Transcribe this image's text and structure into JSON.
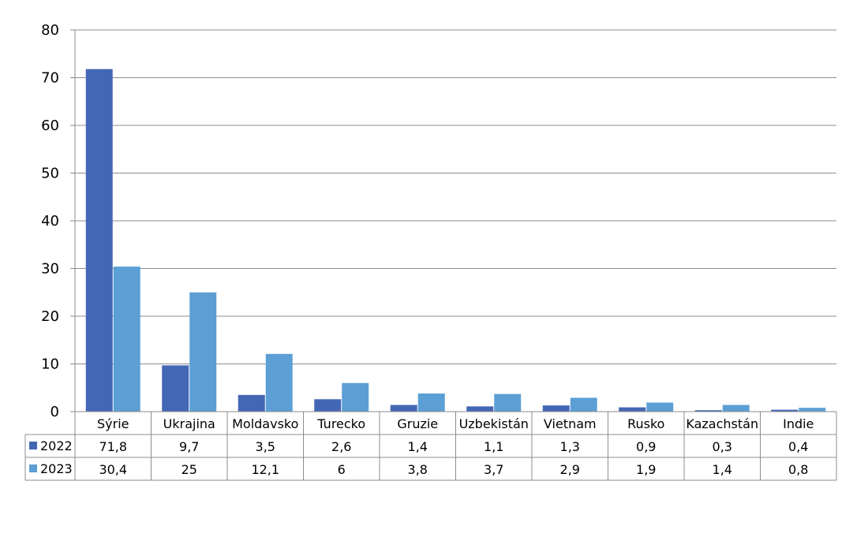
{
  "chart_data": {
    "type": "bar",
    "categories": [
      "Sýrie",
      "Ukrajina",
      "Moldavsko",
      "Turecko",
      "Gruzie",
      "Uzbekistán",
      "Vietnam",
      "Rusko",
      "Kazachstán",
      "Indie"
    ],
    "series": [
      {
        "name": "2022",
        "color": "#4467B5",
        "values": [
          71.8,
          9.7,
          3.5,
          2.6,
          1.4,
          1.1,
          1.3,
          0.9,
          0.3,
          0.4
        ],
        "labels": [
          "71,8",
          "9,7",
          "3,5",
          "2,6",
          "1,4",
          "1,1",
          "1,3",
          "0,9",
          "0,3",
          "0,4"
        ]
      },
      {
        "name": "2023",
        "color": "#5B9FD5",
        "values": [
          30.4,
          25,
          12.1,
          6,
          3.8,
          3.7,
          2.9,
          1.9,
          1.4,
          0.8
        ],
        "labels": [
          "30,4",
          "25",
          "12,1",
          "6",
          "3,8",
          "3,7",
          "2,9",
          "1,9",
          "1,4",
          "0,8"
        ]
      }
    ],
    "yticks": [
      "0",
      "10",
      "20",
      "30",
      "40",
      "50",
      "60",
      "70",
      "80"
    ],
    "ylim": [
      0,
      80
    ],
    "grid": true,
    "data_table": true
  }
}
